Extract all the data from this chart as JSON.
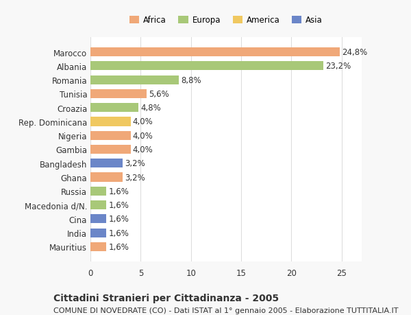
{
  "countries": [
    "Mauritius",
    "India",
    "Cina",
    "Macedonia d/N.",
    "Russia",
    "Ghana",
    "Bangladesh",
    "Gambia",
    "Nigeria",
    "Rep. Dominicana",
    "Croazia",
    "Tunisia",
    "Romania",
    "Albania",
    "Marocco"
  ],
  "values": [
    1.6,
    1.6,
    1.6,
    1.6,
    1.6,
    3.2,
    3.2,
    4.0,
    4.0,
    4.0,
    4.8,
    5.6,
    8.8,
    23.2,
    24.8
  ],
  "labels": [
    "1,6%",
    "1,6%",
    "1,6%",
    "1,6%",
    "1,6%",
    "3,2%",
    "3,2%",
    "4,0%",
    "4,0%",
    "4,0%",
    "4,8%",
    "5,6%",
    "8,8%",
    "23,2%",
    "24,8%"
  ],
  "colors": [
    "#F0A878",
    "#6B86C8",
    "#6B86C8",
    "#A8C878",
    "#A8C878",
    "#F0A878",
    "#6B86C8",
    "#F0A878",
    "#F0A878",
    "#F0C860",
    "#A8C878",
    "#F0A878",
    "#A8C878",
    "#A8C878",
    "#F0A878"
  ],
  "legend": [
    {
      "label": "Africa",
      "color": "#F0A878"
    },
    {
      "label": "Europa",
      "color": "#A8C878"
    },
    {
      "label": "America",
      "color": "#F0C860"
    },
    {
      "label": "Asia",
      "color": "#6B86C8"
    }
  ],
  "xlim": [
    0,
    27
  ],
  "xticks": [
    0,
    5,
    10,
    15,
    20,
    25
  ],
  "title": "Cittadini Stranieri per Cittadinanza - 2005",
  "subtitle": "COMUNE DI NOVEDRATE (CO) - Dati ISTAT al 1° gennaio 2005 - Elaborazione TUTTITALIA.IT",
  "bg_color": "#f8f8f8",
  "bar_bg_color": "#ffffff",
  "grid_color": "#dddddd",
  "text_color": "#333333",
  "label_fontsize": 8.5,
  "tick_fontsize": 8.5,
  "title_fontsize": 10,
  "subtitle_fontsize": 8
}
